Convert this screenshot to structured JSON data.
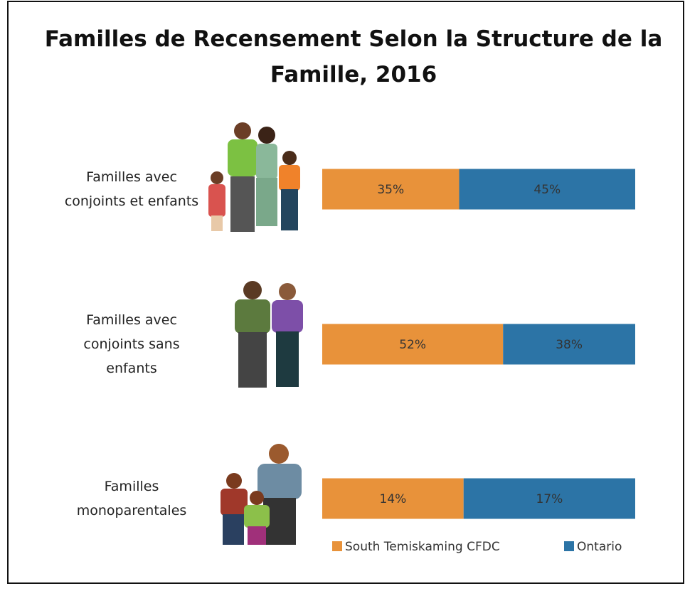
{
  "chart_data": {
    "type": "bar",
    "orientation": "horizontal",
    "stacked": "percent",
    "title": "Familles de Recensement Selon la Structure de la Famille, 2016",
    "categories": [
      "Familles avec conjoints et enfants",
      "Familles avec conjoints sans enfants",
      "Familles monoparentales"
    ],
    "series": [
      {
        "name": "South Temiskaming CFDC",
        "color": "#e8923a",
        "values": [
          35,
          52,
          14
        ],
        "value_labels": [
          "35%",
          "52%",
          "14%"
        ]
      },
      {
        "name": "Ontario",
        "color": "#2c74a6",
        "values": [
          45,
          38,
          17
        ],
        "value_labels": [
          "45%",
          "38%",
          "17%"
        ]
      }
    ],
    "legend": "bottom"
  }
}
